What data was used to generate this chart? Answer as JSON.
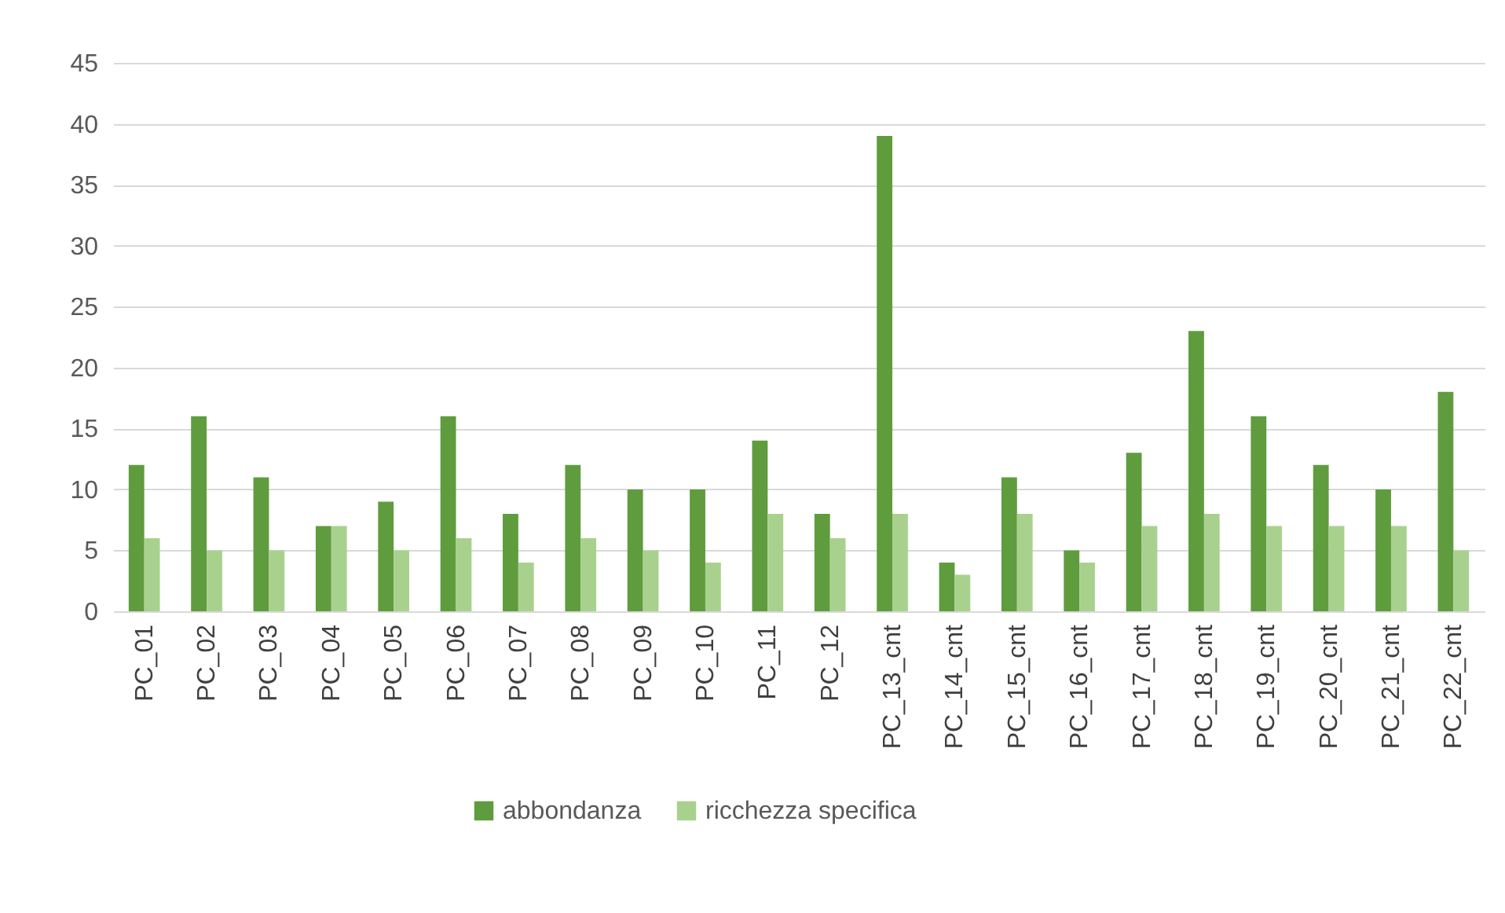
{
  "chart_data": {
    "type": "bar",
    "categories": [
      "PC_01",
      "PC_02",
      "PC_03",
      "PC_04",
      "PC_05",
      "PC_06",
      "PC_07",
      "PC_08",
      "PC_09",
      "PC_10",
      "PC_11",
      "PC_12",
      "PC_13_cnt",
      "PC_14_cnt",
      "PC_15_cnt",
      "PC_16_cnt",
      "PC_17_cnt",
      "PC_18_cnt",
      "PC_19_cnt",
      "PC_20_cnt",
      "PC_21_cnt",
      "PC_22_cnt"
    ],
    "series": [
      {
        "name": "abbondanza",
        "color": "#5f9c3e",
        "values": [
          12,
          16,
          11,
          7,
          9,
          16,
          8,
          12,
          10,
          10,
          14,
          8,
          39,
          4,
          11,
          5,
          13,
          23,
          16,
          12,
          10,
          18
        ]
      },
      {
        "name": "ricchezza specifica",
        "color": "#a9d18e",
        "values": [
          6,
          5,
          5,
          7,
          5,
          6,
          4,
          6,
          5,
          4,
          8,
          6,
          8,
          3,
          8,
          4,
          7,
          8,
          7,
          7,
          7,
          5
        ]
      }
    ],
    "ylim": [
      0,
      45
    ],
    "yticks": [
      0,
      5,
      10,
      15,
      20,
      25,
      30,
      35,
      40,
      45
    ],
    "grid": "y",
    "legend": "bottom"
  }
}
